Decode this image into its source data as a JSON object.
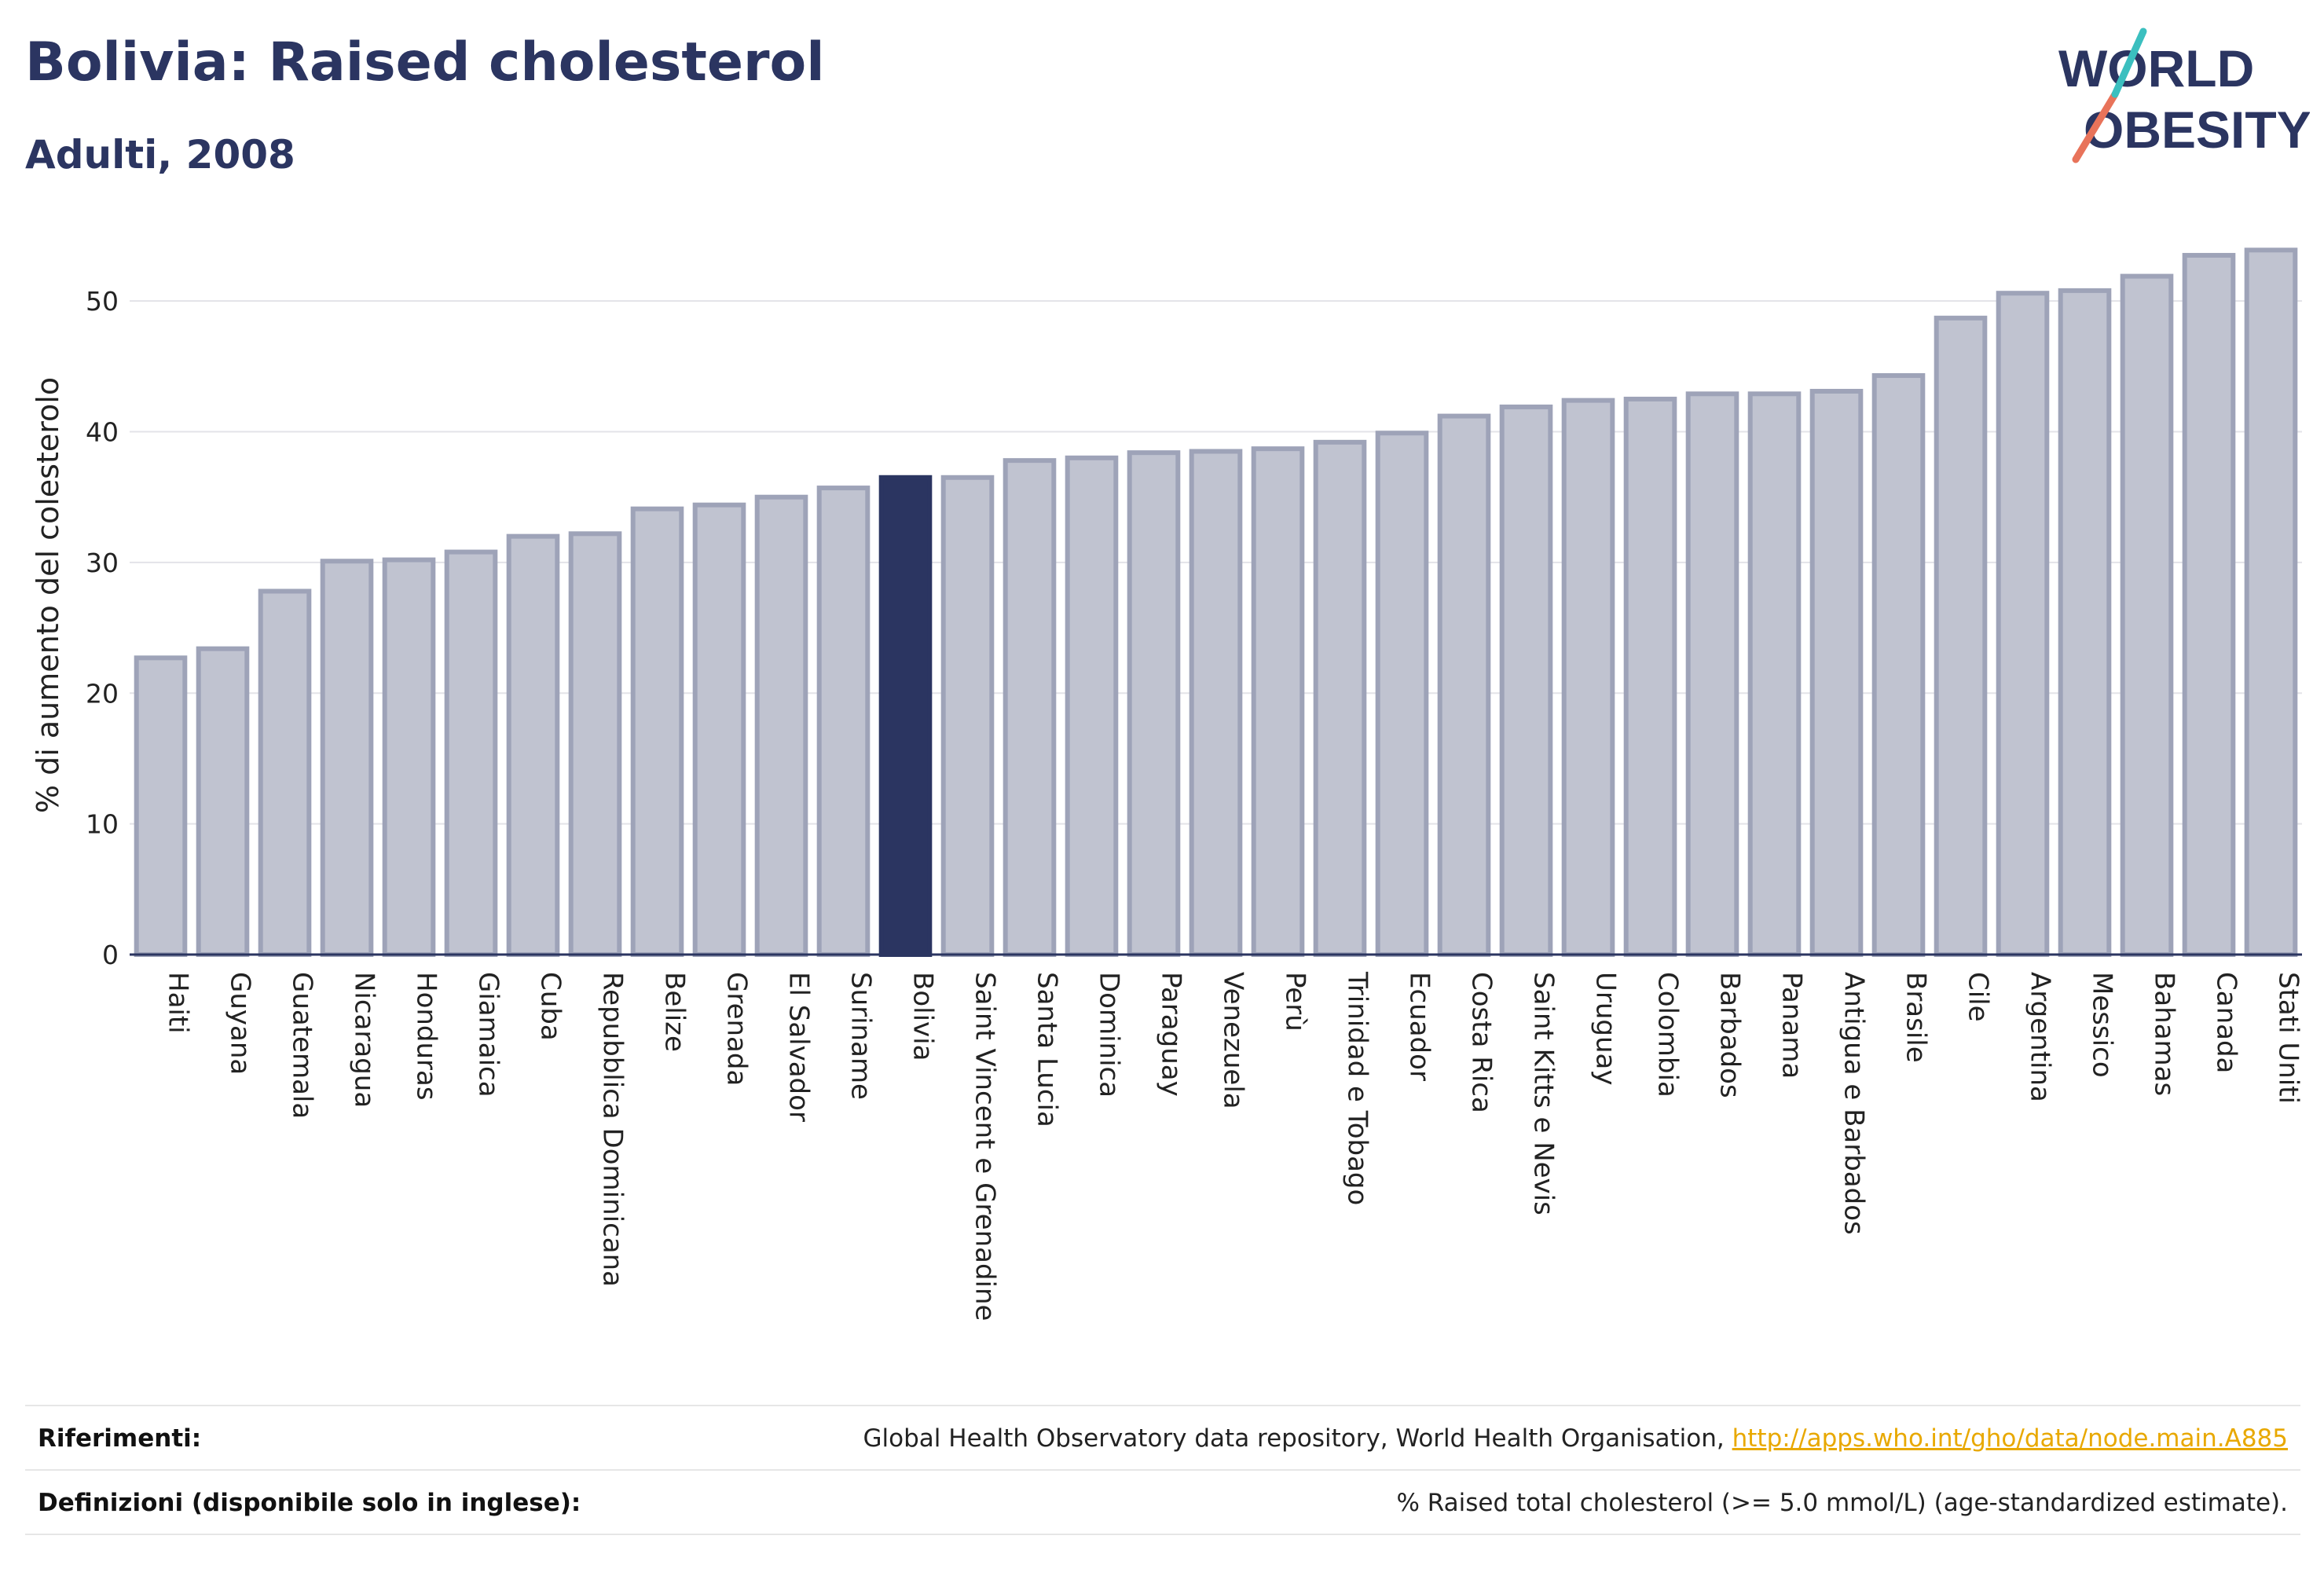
{
  "title": "Bolivia: Raised cholesterol",
  "subtitle": "Adulti, 2008",
  "logo": {
    "line1": "WORLD",
    "line2": "OBESITY"
  },
  "colors": {
    "highlight": "#2b3561",
    "bar_fill": "#c0c3d0",
    "bar_stroke": "#9ea3b8",
    "title": "#2b3561"
  },
  "chart_data": {
    "type": "bar",
    "ylabel": "% di aumento del colesterolo",
    "ylim": [
      0,
      55
    ],
    "yticks": [
      0,
      10,
      20,
      30,
      40,
      50
    ],
    "grid": true,
    "highlight": "Bolivia",
    "categories": [
      "Haiti",
      "Guyana",
      "Guatemala",
      "Nicaragua",
      "Honduras",
      "Giamaica",
      "Cuba",
      "Repubblica Dominicana",
      "Belize",
      "Grenada",
      "El Salvador",
      "Suriname",
      "Bolivia",
      "Saint Vincent e Grenadine",
      "Santa Lucia",
      "Dominica",
      "Paraguay",
      "Venezuela",
      "Perù",
      "Trinidad e Tobago",
      "Ecuador",
      "Costa Rica",
      "Saint Kitts e Nevis",
      "Uruguay",
      "Colombia",
      "Barbados",
      "Panama",
      "Antigua e Barbados",
      "Brasile",
      "Cile",
      "Argentina",
      "Messico",
      "Bahamas",
      "Canada",
      "Stati Uniti"
    ],
    "values": [
      22.7,
      23.4,
      27.8,
      30.1,
      30.2,
      30.8,
      32.0,
      32.2,
      34.1,
      34.4,
      35.0,
      35.7,
      36.5,
      36.5,
      37.8,
      38.0,
      38.4,
      38.5,
      38.7,
      39.2,
      39.9,
      41.2,
      41.9,
      42.4,
      42.5,
      42.9,
      42.9,
      43.1,
      44.3,
      48.7,
      50.6,
      50.8,
      51.9,
      53.5,
      53.9
    ]
  },
  "footer": {
    "references_label": "Riferimenti:",
    "references_text": "Global Health Observatory data repository, World Health Organisation, ",
    "references_link": "http://apps.who.int/gho/data/node.main.A885",
    "definitions_label": "Definizioni (disponibile solo in inglese):",
    "definitions_text": "% Raised total cholesterol (>= 5.0 mmol/L) (age-standardized estimate)."
  }
}
